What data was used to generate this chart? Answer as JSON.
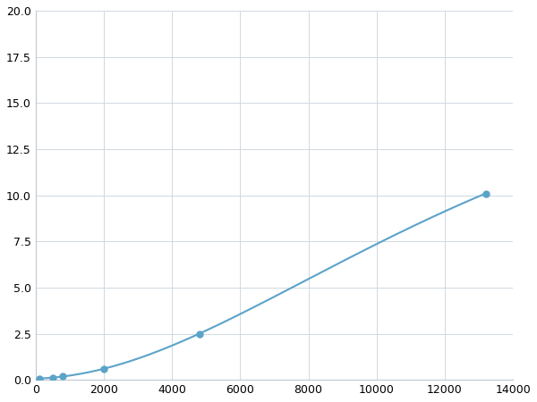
{
  "x": [
    125,
    500,
    800,
    2000,
    4800,
    13200
  ],
  "y": [
    0.08,
    0.12,
    0.18,
    0.6,
    2.5,
    10.1
  ],
  "line_color": "#5ba3c9",
  "marker_color": "#5ba3c9",
  "marker_size": 5,
  "xlim": [
    0,
    14000
  ],
  "ylim": [
    0,
    20
  ],
  "xticks": [
    0,
    2000,
    4000,
    6000,
    8000,
    10000,
    12000,
    14000
  ],
  "yticks": [
    0.0,
    2.5,
    5.0,
    7.5,
    10.0,
    12.5,
    15.0,
    17.5,
    20.0
  ],
  "grid_color": "#d0d8e0",
  "background_color": "#ffffff",
  "fig_background": "#ffffff"
}
